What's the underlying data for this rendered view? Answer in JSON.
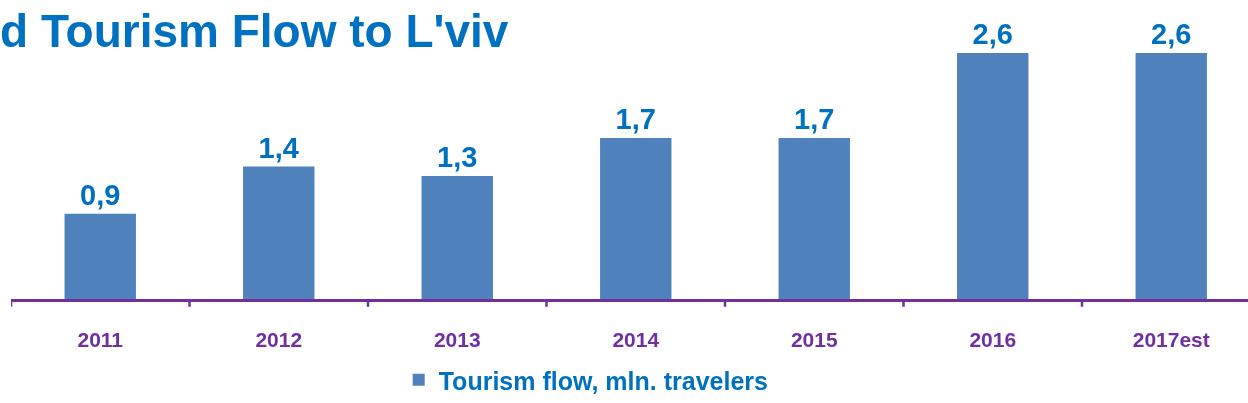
{
  "chart_data": {
    "type": "bar",
    "title": "d Tourism Flow to L'viv",
    "categories": [
      "2011",
      "2012",
      "2013",
      "2014",
      "2015",
      "2016",
      "2017est"
    ],
    "series": [
      {
        "name": "Tourism flow, mln. travelers",
        "color": "#4f81bd",
        "values": [
          0.9,
          1.4,
          1.3,
          1.7,
          1.7,
          2.6,
          2.6
        ],
        "value_labels": [
          "0,9",
          "1,4",
          "1,3",
          "1,7",
          "1,7",
          "2,6",
          "2,6"
        ]
      }
    ],
    "legend": "bottom",
    "tick_labels": "x"
  }
}
